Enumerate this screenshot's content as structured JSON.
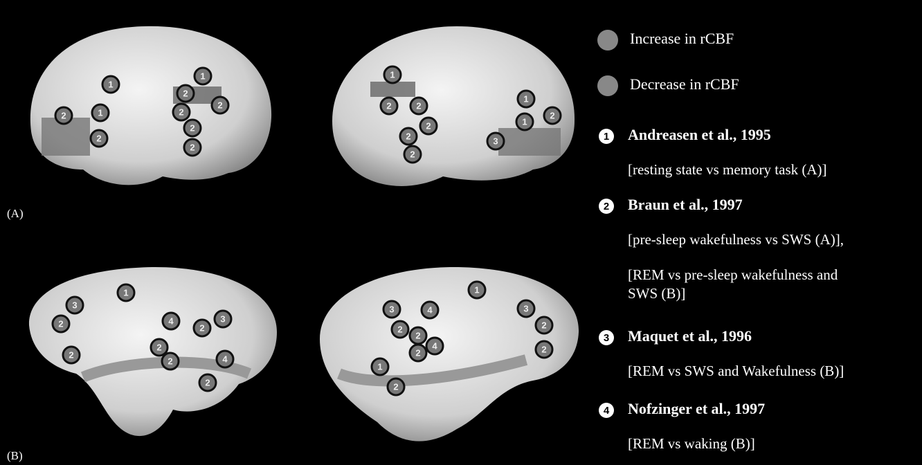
{
  "panels": [
    {
      "label": "(A)"
    },
    {
      "label": "(B)"
    }
  ],
  "brains": [
    {
      "markers": [
        "1",
        "1",
        "2",
        "1",
        "2",
        "2",
        "2",
        "2",
        "2",
        "2"
      ]
    },
    {
      "markers": [
        "1",
        "2",
        "2",
        "2",
        "2",
        "2",
        "1",
        "1",
        "2",
        "3"
      ]
    },
    {
      "markers": [
        "1",
        "3",
        "2",
        "4",
        "3",
        "2",
        "2",
        "2",
        "2",
        "4",
        "2"
      ]
    },
    {
      "markers": [
        "1",
        "3",
        "4",
        "2",
        "2",
        "4",
        "2",
        "3",
        "2",
        "2",
        "1",
        "2"
      ]
    }
  ],
  "legend": {
    "increase": "Increase in rCBF",
    "decrease": "Decrease in rCBF"
  },
  "studies": [
    {
      "number": "1",
      "citation": "Andreasen et al., 1995",
      "details": [
        "[resting state vs memory task (A)]"
      ]
    },
    {
      "number": "2",
      "citation": "Braun et al., 1997",
      "details": [
        "[pre-sleep wakefulness vs SWS (A)],",
        "[REM vs pre-sleep wakefulness and",
        "SWS (B)]"
      ]
    },
    {
      "number": "3",
      "citation": "Maquet et al., 1996",
      "details": [
        "[REM vs SWS and Wakefulness (B)]"
      ]
    },
    {
      "number": "4",
      "citation": "Nofzinger et al., 1997",
      "details": [
        "[REM vs waking (B)]"
      ]
    }
  ]
}
